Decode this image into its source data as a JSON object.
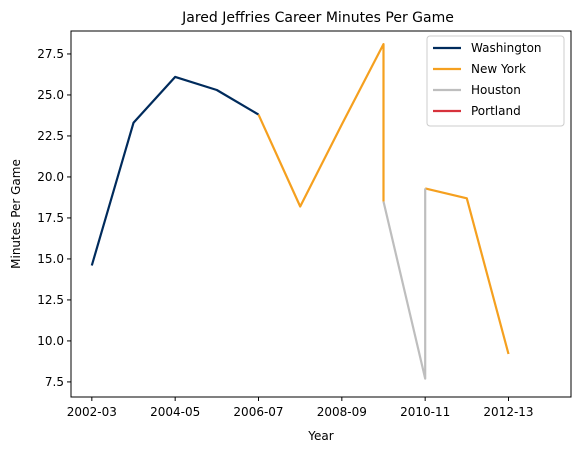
{
  "chart_data": {
    "type": "line",
    "title": "Jared Jeffries Career Minutes Per Game",
    "xlabel": "Year",
    "ylabel": "Minutes Per Game",
    "x_tick_labels": [
      "2002-03",
      "2004-05",
      "2006-07",
      "2008-09",
      "2010-11",
      "2012-13"
    ],
    "y_ticks": [
      7.5,
      10.0,
      12.5,
      15.0,
      17.5,
      20.0,
      22.5,
      25.0,
      27.5
    ],
    "y_tick_labels": [
      "7.5",
      "10.0",
      "12.5",
      "15.0",
      "17.5",
      "20.0",
      "22.5",
      "25.0",
      "27.5"
    ],
    "xlim": [
      2001.5,
      2013.5
    ],
    "ylim": [
      6.58,
      28.9
    ],
    "grid": false,
    "legend_position": "top-right",
    "series": [
      {
        "name": "Washington",
        "color": "#002b5c",
        "points": [
          [
            2002,
            14.6
          ],
          [
            2003,
            23.3
          ],
          [
            2004,
            26.1
          ],
          [
            2005,
            25.3
          ],
          [
            2006,
            23.8
          ]
        ]
      },
      {
        "name": "New York",
        "color": "#f5a01f",
        "segments": [
          [
            [
              2006,
              23.8
            ],
            [
              2007,
              18.2
            ],
            [
              2008,
              23.2
            ],
            [
              2009,
              28.1
            ],
            [
              2009,
              18.5
            ]
          ],
          [
            [
              2010,
              19.3
            ],
            [
              2011,
              18.7
            ],
            [
              2012,
              9.2
            ]
          ]
        ]
      },
      {
        "name": "Houston",
        "color": "#bebebe",
        "points": [
          [
            2009,
            18.5
          ],
          [
            2010,
            7.7
          ],
          [
            2010,
            19.3
          ]
        ]
      },
      {
        "name": "Portland",
        "color": "#d7323c",
        "points": []
      }
    ]
  }
}
